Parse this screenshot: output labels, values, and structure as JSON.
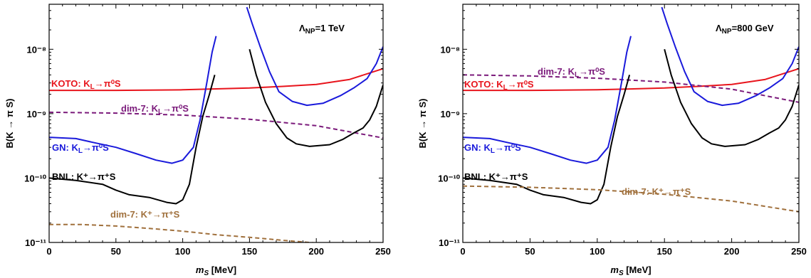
{
  "chart_data": [
    {
      "type": "line",
      "panel_label": "Λ_NP=1 TeV",
      "xlabel": "m_S [MeV]",
      "ylabel": "B(K → π S)",
      "xlim": [
        0,
        250
      ],
      "ylim": [
        1e-11,
        5e-08
      ],
      "yscale": "log",
      "x_ticks": [
        0,
        50,
        100,
        150,
        200,
        250
      ],
      "y_ticks": [
        {
          "value": 1e-11,
          "label": "10⁻¹¹"
        },
        {
          "value": 1e-10,
          "label": "10⁻¹⁰"
        },
        {
          "value": 1e-09,
          "label": "10⁻⁹"
        },
        {
          "value": 1e-08,
          "label": "10⁻⁸"
        }
      ],
      "grid": false,
      "series": [
        {
          "name": "KOTO: K_L→π⁰S",
          "color": "#e8141c",
          "dash": "solid",
          "points": [
            [
              0,
              2.3e-09
            ],
            [
              50,
              2.3e-09
            ],
            [
              100,
              2.35e-09
            ],
            [
              150,
              2.5e-09
            ],
            [
              175,
              2.65e-09
            ],
            [
              200,
              2.85e-09
            ],
            [
              225,
              3.4e-09
            ],
            [
              250,
              5e-09
            ]
          ]
        },
        {
          "name": "dim-7: K_L→π⁰S",
          "color": "#7b1a7b",
          "dash": "dashed",
          "points": [
            [
              0,
              1.05e-09
            ],
            [
              50,
              1.02e-09
            ],
            [
              100,
              9.5e-10
            ],
            [
              150,
              8.2e-10
            ],
            [
              200,
              6.5e-10
            ],
            [
              250,
              4.2e-10
            ]
          ]
        },
        {
          "name": "GN: K_L→π⁰S",
          "color": "#1a1adb",
          "dash": "solid",
          "segments": [
            [
              [
                0,
                4.3e-10
              ],
              [
                20,
                4.1e-10
              ],
              [
                35,
                3.5e-10
              ],
              [
                50,
                3e-10
              ],
              [
                65,
                2.4e-10
              ],
              [
                80,
                1.9e-10
              ],
              [
                92,
                1.7e-10
              ],
              [
                100,
                1.9e-10
              ],
              [
                108,
                3e-10
              ],
              [
                113,
                8e-10
              ],
              [
                118,
                3e-09
              ],
              [
                122,
                9e-09
              ],
              [
                125,
                1.6e-08
              ]
            ],
            [
              [
                148,
                4.5e-08
              ],
              [
                152,
                2.5e-08
              ],
              [
                158,
                1.1e-08
              ],
              [
                165,
                4.5e-09
              ],
              [
                172,
                2.2e-09
              ],
              [
                182,
                1.55e-09
              ],
              [
                193,
                1.35e-09
              ],
              [
                205,
                1.45e-09
              ],
              [
                218,
                1.9e-09
              ],
              [
                228,
                2.5e-09
              ],
              [
                238,
                3.5e-09
              ],
              [
                245,
                6e-09
              ],
              [
                250,
                1.1e-08
              ]
            ]
          ]
        },
        {
          "name": "BNL: K⁺→π⁺S",
          "color": "#000000",
          "dash": "solid",
          "segments": [
            [
              [
                0,
                1e-10
              ],
              [
                20,
                9.2e-11
              ],
              [
                40,
                8e-11
              ],
              [
                50,
                6.5e-11
              ],
              [
                60,
                5.5e-11
              ],
              [
                75,
                5e-11
              ],
              [
                88,
                4.2e-11
              ],
              [
                95,
                4e-11
              ],
              [
                100,
                4.6e-11
              ],
              [
                105,
                8e-11
              ],
              [
                110,
                3e-10
              ],
              [
                115,
                9e-10
              ],
              [
                120,
                2e-09
              ],
              [
                124,
                4e-09
              ]
            ],
            [
              [
                150,
                1e-08
              ],
              [
                155,
                4e-09
              ],
              [
                162,
                1.5e-09
              ],
              [
                170,
                7e-10
              ],
              [
                178,
                4.2e-10
              ],
              [
                185,
                3.4e-10
              ],
              [
                195,
                3.1e-10
              ],
              [
                210,
                3.3e-10
              ],
              [
                220,
                4e-10
              ],
              [
                228,
                5e-10
              ],
              [
                235,
                6e-10
              ],
              [
                240,
                8e-10
              ],
              [
                245,
                1.3e-09
              ],
              [
                250,
                2.8e-09
              ]
            ]
          ]
        },
        {
          "name": "dim-7: K⁺→π⁺S",
          "color": "#a0703c",
          "dash": "dashed",
          "points": [
            [
              0,
              1.9e-11
            ],
            [
              25,
              1.9e-11
            ],
            [
              50,
              1.8e-11
            ],
            [
              75,
              1.65e-11
            ],
            [
              100,
              1.5e-11
            ],
            [
              125,
              1.32e-11
            ],
            [
              150,
              1.2e-11
            ],
            [
              175,
              1.08e-11
            ],
            [
              200,
              9.8e-12
            ]
          ]
        }
      ]
    },
    {
      "type": "line",
      "panel_label": "Λ_NP=800 GeV",
      "xlabel": "m_S [MeV]",
      "ylabel": "B(K → π S)",
      "xlim": [
        0,
        250
      ],
      "ylim": [
        1e-11,
        5e-08
      ],
      "yscale": "log",
      "x_ticks": [
        0,
        50,
        100,
        150,
        200,
        250
      ],
      "y_ticks": [
        {
          "value": 1e-11,
          "label": "10⁻¹¹"
        },
        {
          "value": 1e-10,
          "label": "10⁻¹⁰"
        },
        {
          "value": 1e-09,
          "label": "10⁻⁹"
        },
        {
          "value": 1e-08,
          "label": "10⁻⁸"
        }
      ],
      "grid": false,
      "series": [
        {
          "name": "KOTO: K_L→π⁰S",
          "color": "#e8141c",
          "dash": "solid",
          "points": [
            [
              0,
              2.3e-09
            ],
            [
              50,
              2.3e-09
            ],
            [
              100,
              2.35e-09
            ],
            [
              150,
              2.5e-09
            ],
            [
              175,
              2.65e-09
            ],
            [
              200,
              2.85e-09
            ],
            [
              225,
              3.4e-09
            ],
            [
              250,
              5e-09
            ]
          ]
        },
        {
          "name": "dim-7: K_L→π⁰S",
          "color": "#7b1a7b",
          "dash": "dashed",
          "points": [
            [
              0,
              4e-09
            ],
            [
              50,
              3.85e-09
            ],
            [
              100,
              3.55e-09
            ],
            [
              150,
              3.1e-09
            ],
            [
              200,
              2.4e-09
            ],
            [
              250,
              1.5e-09
            ]
          ]
        },
        {
          "name": "GN: K_L→π⁰S",
          "color": "#1a1adb",
          "dash": "solid",
          "segments": [
            [
              [
                0,
                4.3e-10
              ],
              [
                20,
                4.1e-10
              ],
              [
                35,
                3.5e-10
              ],
              [
                50,
                3e-10
              ],
              [
                65,
                2.4e-10
              ],
              [
                80,
                1.9e-10
              ],
              [
                92,
                1.7e-10
              ],
              [
                100,
                1.9e-10
              ],
              [
                108,
                3e-10
              ],
              [
                113,
                8e-10
              ],
              [
                118,
                3e-09
              ],
              [
                122,
                9e-09
              ],
              [
                125,
                1.6e-08
              ]
            ],
            [
              [
                148,
                4.5e-08
              ],
              [
                152,
                2.5e-08
              ],
              [
                158,
                1.1e-08
              ],
              [
                165,
                4.5e-09
              ],
              [
                172,
                2.2e-09
              ],
              [
                182,
                1.55e-09
              ],
              [
                193,
                1.35e-09
              ],
              [
                205,
                1.45e-09
              ],
              [
                218,
                1.9e-09
              ],
              [
                228,
                2.5e-09
              ],
              [
                238,
                3.5e-09
              ],
              [
                245,
                6e-09
              ],
              [
                250,
                1.1e-08
              ]
            ]
          ]
        },
        {
          "name": "BNL: K⁺→π⁺S",
          "color": "#000000",
          "dash": "solid",
          "segments": [
            [
              [
                0,
                1e-10
              ],
              [
                20,
                9.2e-11
              ],
              [
                40,
                8e-11
              ],
              [
                50,
                6.5e-11
              ],
              [
                60,
                5.5e-11
              ],
              [
                75,
                5e-11
              ],
              [
                88,
                4.2e-11
              ],
              [
                95,
                4e-11
              ],
              [
                100,
                4.6e-11
              ],
              [
                105,
                8e-11
              ],
              [
                110,
                3e-10
              ],
              [
                115,
                9e-10
              ],
              [
                120,
                2e-09
              ],
              [
                124,
                4e-09
              ]
            ],
            [
              [
                150,
                1e-08
              ],
              [
                155,
                4e-09
              ],
              [
                162,
                1.5e-09
              ],
              [
                170,
                7e-10
              ],
              [
                178,
                4.2e-10
              ],
              [
                185,
                3.4e-10
              ],
              [
                195,
                3.1e-10
              ],
              [
                210,
                3.3e-10
              ],
              [
                220,
                4e-10
              ],
              [
                228,
                5e-10
              ],
              [
                235,
                6e-10
              ],
              [
                240,
                8e-10
              ],
              [
                245,
                1.3e-09
              ],
              [
                250,
                2.8e-09
              ]
            ]
          ]
        },
        {
          "name": "dim-7: K⁺→π⁺S",
          "color": "#a0703c",
          "dash": "dashed",
          "points": [
            [
              0,
              7.5e-11
            ],
            [
              50,
              7.2e-11
            ],
            [
              100,
              6.6e-11
            ],
            [
              150,
              5.6e-11
            ],
            [
              200,
              4.4e-11
            ],
            [
              250,
              3e-11
            ]
          ]
        }
      ]
    }
  ]
}
